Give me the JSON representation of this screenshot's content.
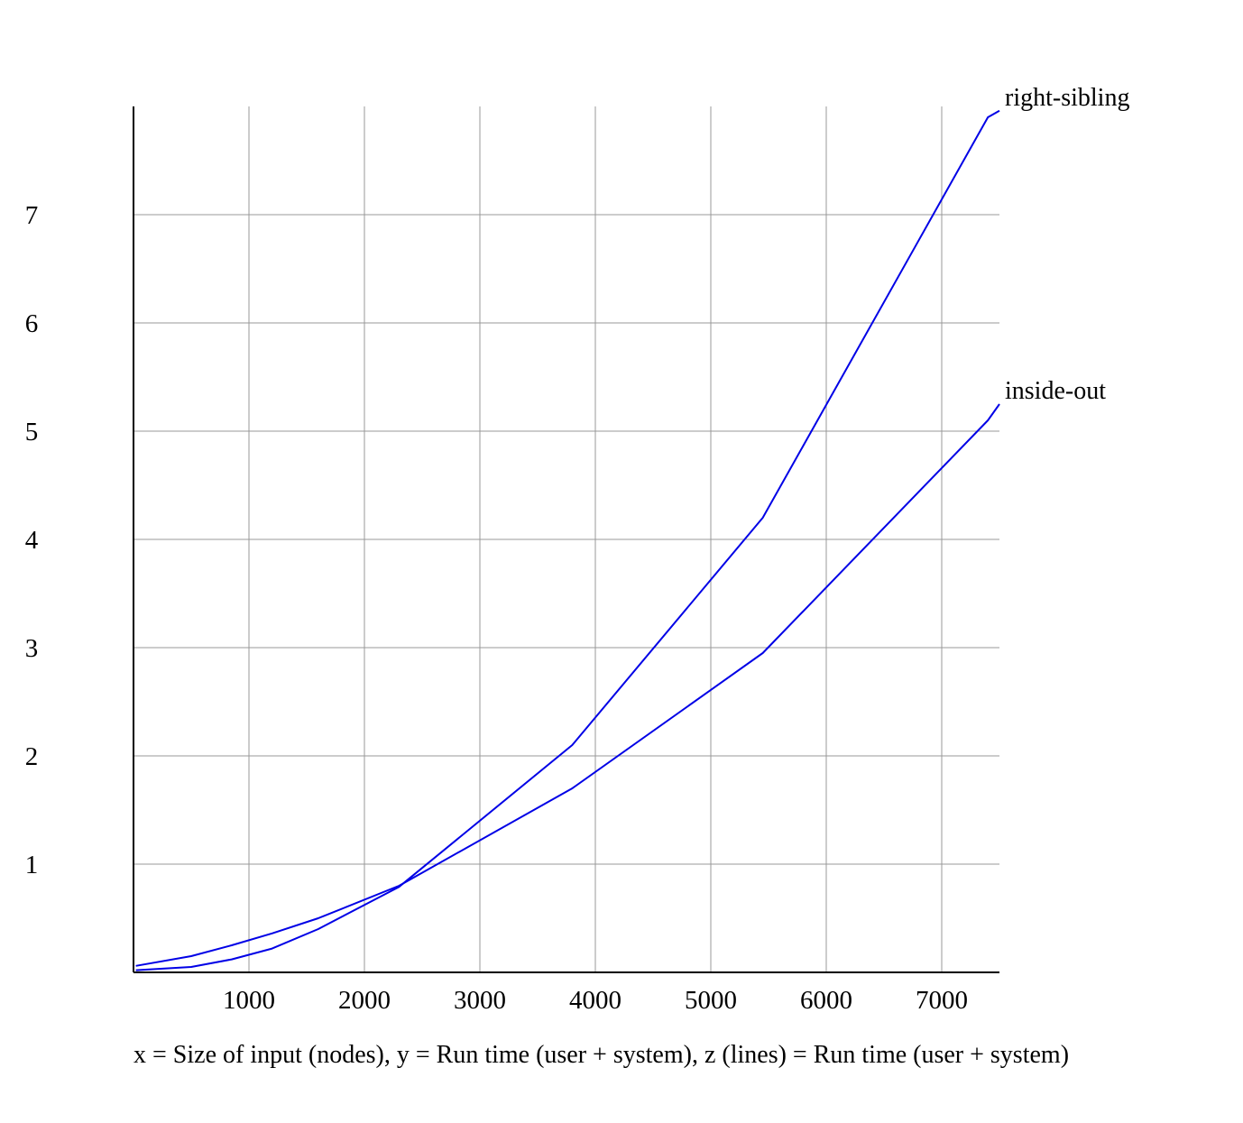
{
  "chart_data": {
    "type": "line",
    "caption": "x = Size of input (nodes), y = Run time (user + system), z (lines) = Run time (user + system)",
    "xlim": [
      0,
      7500
    ],
    "ylim": [
      0,
      8
    ],
    "x_ticks": [
      1000,
      2000,
      3000,
      4000,
      5000,
      6000,
      7000
    ],
    "y_ticks": [
      1,
      2,
      3,
      4,
      5,
      6,
      7
    ],
    "grid": true,
    "line_color": "#0000e6",
    "grid_color": "#999999",
    "axis_color": "#000000",
    "series": [
      {
        "name": "right-sibling",
        "x": [
          20,
          500,
          850,
          1200,
          1600,
          2300,
          3800,
          5450,
          7400,
          7500
        ],
        "y": [
          0.02,
          0.05,
          0.12,
          0.22,
          0.4,
          0.79,
          2.1,
          4.2,
          7.9,
          7.96
        ]
      },
      {
        "name": "inside-out",
        "x": [
          20,
          500,
          850,
          1200,
          1600,
          2300,
          3800,
          5450,
          7400,
          7500
        ],
        "y": [
          0.06,
          0.15,
          0.25,
          0.36,
          0.5,
          0.8,
          1.7,
          2.95,
          5.1,
          5.25
        ]
      }
    ]
  }
}
